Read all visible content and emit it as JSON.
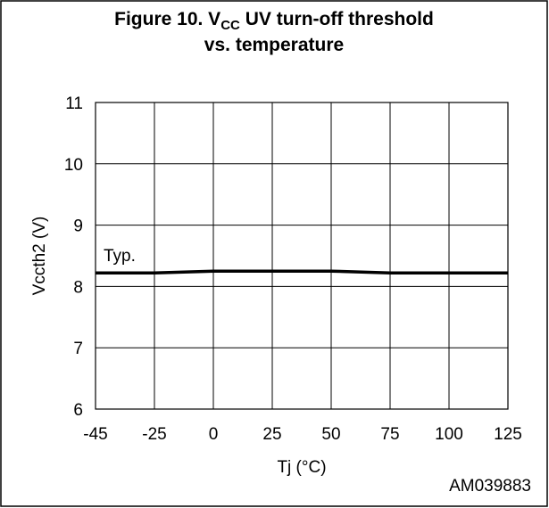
{
  "chart_data": {
    "type": "line",
    "title": {
      "prefix": "Figure 10. V",
      "subscript": "CC",
      "suffix": " UV turn-off threshold",
      "line2": "vs. temperature"
    },
    "x_label": "Tj (°C)",
    "y_label": "Vccth2 (V)",
    "annotation": "Typ.",
    "figure_code": "AM039883",
    "categories": [
      "-45",
      "-25",
      "0",
      "25",
      "50",
      "75",
      "100",
      "125"
    ],
    "series": [
      {
        "name": "Typ.",
        "color": "#000000",
        "values": [
          8.22,
          8.22,
          8.25,
          8.25,
          8.25,
          8.22,
          8.22,
          8.22
        ]
      }
    ],
    "ylim": [
      6,
      11
    ],
    "yticks": [
      6,
      7,
      8,
      9,
      10,
      11
    ],
    "grid": true
  }
}
